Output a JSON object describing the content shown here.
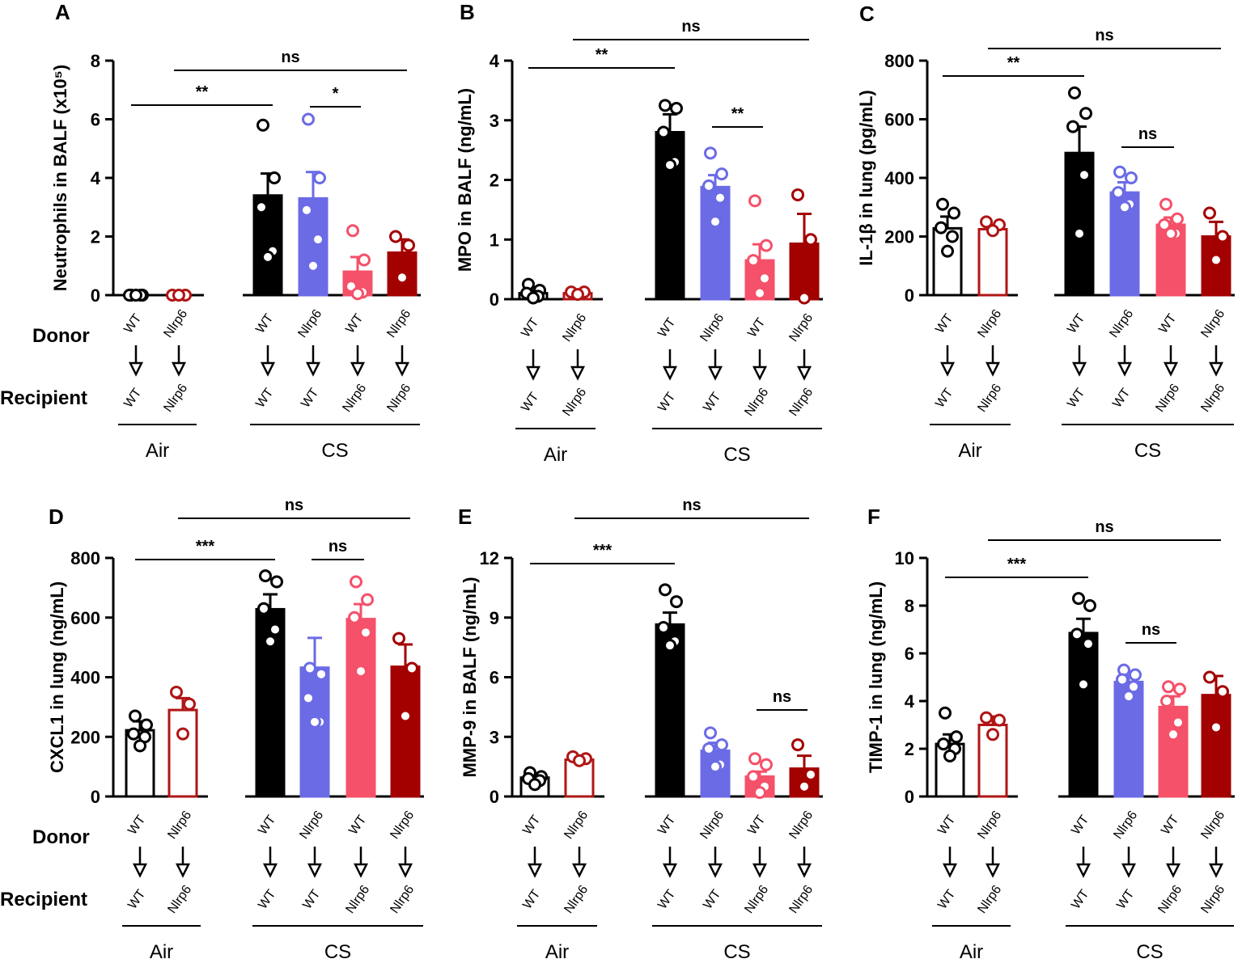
{
  "figure": {
    "row_labels": {
      "donor": "Donor",
      "recipient": "Recipient"
    },
    "exposure_labels": {
      "air": "Air",
      "cs": "CS"
    },
    "groups": [
      {
        "donor": "WT",
        "recipient": "WT",
        "exposure": "Air"
      },
      {
        "donor": "Nlrp6",
        "recipient": "Nlrp6",
        "exposure": "Air"
      },
      {
        "donor": "WT",
        "recipient": "WT",
        "exposure": "CS"
      },
      {
        "donor": "Nlrp6",
        "recipient": "WT",
        "exposure": "CS"
      },
      {
        "donor": "WT",
        "recipient": "Nlrp6",
        "exposure": "CS"
      },
      {
        "donor": "Nlrp6",
        "recipient": "Nlrp6",
        "exposure": "CS"
      }
    ],
    "colors": {
      "air_wt": "#000000",
      "air_nlrp6": "#b01515",
      "cs_wt_wt": "#000000",
      "cs_nlrp6_wt": "#6b6be6",
      "cs_wt_nlrp6": "#f5516a",
      "cs_nlrp6_nlrp6": "#a30000"
    }
  },
  "chart_data": [
    {
      "panel": "A",
      "type": "bar",
      "ylabel": "Neutrophils in BALF (x10⁵)",
      "ylim": [
        0,
        8
      ],
      "yticks": [
        0,
        2,
        4,
        6,
        8
      ],
      "categories": [
        "WT→WT Air",
        "Nlrp6→Nlrp6 Air",
        "WT→WT CS",
        "Nlrp6→WT CS",
        "WT→Nlrp6 CS",
        "Nlrp6→Nlrp6 CS"
      ],
      "values": [
        0,
        0,
        3.4,
        3.3,
        0.8,
        1.45
      ],
      "errors": [
        0,
        0,
        0.75,
        0.9,
        0.5,
        0.45
      ],
      "points": [
        [
          0,
          0,
          0,
          0,
          0
        ],
        [
          0,
          0,
          0
        ],
        [
          5.8,
          4.0,
          3.0,
          1.5,
          1.3
        ],
        [
          6.0,
          4.0,
          2.9,
          1.9,
          1.0
        ],
        [
          2.2,
          1.2,
          0.3,
          0.1,
          0.05
        ],
        [
          2.0,
          1.7,
          0.6
        ]
      ],
      "significance": [
        {
          "from": 0,
          "to": 2,
          "label": "**"
        },
        {
          "from": 3,
          "to": 4,
          "label": "*"
        },
        {
          "from": 1,
          "to": 5,
          "label": "ns"
        }
      ]
    },
    {
      "panel": "B",
      "type": "bar",
      "ylabel": "MPO in BALF (ng/mL)",
      "ylim": [
        0,
        4
      ],
      "yticks": [
        0,
        1,
        2,
        3,
        4
      ],
      "categories": [
        "WT→WT Air",
        "Nlrp6→Nlrp6 Air",
        "WT→WT CS",
        "Nlrp6→WT CS",
        "WT→Nlrp6 CS",
        "Nlrp6→Nlrp6 CS"
      ],
      "values": [
        0.1,
        0.1,
        2.8,
        1.88,
        0.65,
        0.93
      ],
      "errors": [
        0.05,
        0.02,
        0.3,
        0.2,
        0.27,
        0.5
      ],
      "points": [
        [
          0.25,
          0.15,
          0.1,
          0.05,
          0.02
        ],
        [
          0.12,
          0.12,
          0.08
        ],
        [
          3.25,
          3.2,
          2.8,
          2.3,
          2.25
        ],
        [
          2.45,
          2.1,
          1.9,
          1.7,
          1.3
        ],
        [
          1.65,
          0.9,
          0.65,
          0.35,
          0.1
        ],
        [
          1.75,
          1.0,
          0.02
        ]
      ],
      "significance": [
        {
          "from": 0,
          "to": 2,
          "label": "**"
        },
        {
          "from": 3,
          "to": 4,
          "label": "**"
        },
        {
          "from": 1,
          "to": 5,
          "label": "ns"
        }
      ]
    },
    {
      "panel": "C",
      "type": "bar",
      "ylabel": "IL-1β in lung (pg/mL)",
      "ylim": [
        0,
        800
      ],
      "yticks": [
        0,
        200,
        400,
        600,
        800
      ],
      "categories": [
        "WT→WT Air",
        "Nlrp6→Nlrp6 Air",
        "WT→WT CS",
        "Nlrp6→WT CS",
        "WT→Nlrp6 CS",
        "Nlrp6→Nlrp6 CS"
      ],
      "values": [
        228,
        225,
        485,
        350,
        240,
        200
      ],
      "errors": [
        40,
        15,
        90,
        35,
        25,
        50
      ],
      "points": [
        [
          310,
          280,
          230,
          200,
          150
        ],
        [
          250,
          240,
          220
        ],
        [
          690,
          620,
          575,
          410,
          210
        ],
        [
          420,
          400,
          350,
          310,
          300
        ],
        [
          310,
          260,
          240,
          210,
          210
        ],
        [
          280,
          200,
          120
        ]
      ],
      "significance": [
        {
          "from": 0,
          "to": 2,
          "label": "**"
        },
        {
          "from": 3,
          "to": 4,
          "label": "ns"
        },
        {
          "from": 1,
          "to": 5,
          "label": "ns"
        }
      ]
    },
    {
      "panel": "D",
      "type": "bar",
      "ylabel": "CXCL1 in lung (ng/mL)",
      "ylim": [
        0,
        800
      ],
      "yticks": [
        0,
        200,
        400,
        600,
        800
      ],
      "categories": [
        "WT→WT Air",
        "Nlrp6→Nlrp6 Air",
        "WT→WT CS",
        "Nlrp6→WT CS",
        "WT→Nlrp6 CS",
        "Nlrp6→Nlrp6 CS"
      ],
      "values": [
        222,
        290,
        628,
        432,
        595,
        435
      ],
      "errors": [
        30,
        40,
        50,
        100,
        50,
        75
      ],
      "points": [
        [
          270,
          240,
          210,
          200,
          170
        ],
        [
          350,
          310,
          210
        ],
        [
          740,
          720,
          630,
          560,
          520
        ],
        [
          430,
          410,
          330,
          250,
          250
        ],
        [
          720,
          660,
          600,
          550,
          420
        ],
        [
          530,
          430,
          270
        ]
      ],
      "significance": [
        {
          "from": 0,
          "to": 2,
          "label": "***"
        },
        {
          "from": 3,
          "to": 4,
          "label": "ns"
        },
        {
          "from": 1,
          "to": 5,
          "label": "ns"
        }
      ]
    },
    {
      "panel": "E",
      "type": "bar",
      "ylabel": "MMP-9 in BALF (ng/mL)",
      "ylim": [
        0,
        12
      ],
      "yticks": [
        0,
        3,
        6,
        9,
        12
      ],
      "categories": [
        "WT→WT Air",
        "Nlrp6→Nlrp6 Air",
        "WT→WT CS",
        "Nlrp6→WT CS",
        "WT→Nlrp6 CS",
        "Nlrp6→Nlrp6 CS"
      ],
      "values": [
        0.95,
        1.85,
        8.65,
        2.3,
        1.0,
        1.4
      ],
      "errors": [
        0.15,
        0.15,
        0.6,
        0.4,
        0.25,
        0.65
      ],
      "points": [
        [
          1.2,
          1.0,
          0.9,
          0.8,
          0.6
        ],
        [
          2.0,
          1.9,
          1.8
        ],
        [
          10.4,
          9.8,
          8.5,
          7.8,
          7.6
        ],
        [
          3.2,
          2.6,
          2.4,
          1.6,
          1.5
        ],
        [
          1.9,
          1.6,
          1.0,
          0.5,
          0.2
        ],
        [
          2.6,
          1.1,
          0.5
        ]
      ],
      "significance": [
        {
          "from": 0,
          "to": 2,
          "label": "***"
        },
        {
          "from": 4,
          "to": 5,
          "label": "ns"
        },
        {
          "from": 1,
          "to": 5,
          "label": "ns"
        }
      ]
    },
    {
      "panel": "F",
      "type": "bar",
      "ylabel": "TIMP-1 in lung (ng/mL)",
      "ylim": [
        0,
        10
      ],
      "yticks": [
        0,
        2,
        4,
        6,
        8,
        10
      ],
      "categories": [
        "WT→WT Air",
        "Nlrp6→Nlrp6 Air",
        "WT→WT CS",
        "Nlrp6→WT CS",
        "WT→Nlrp6 CS",
        "Nlrp6→Nlrp6 CS"
      ],
      "values": [
        2.2,
        3.0,
        6.85,
        4.8,
        3.75,
        4.25
      ],
      "errors": [
        0.4,
        0.35,
        0.6,
        0.25,
        0.45,
        0.8
      ],
      "points": [
        [
          3.5,
          2.5,
          2.2,
          2.0,
          1.7
        ],
        [
          3.3,
          3.2,
          2.6
        ],
        [
          8.3,
          8.0,
          6.8,
          6.4,
          4.7
        ],
        [
          5.3,
          5.1,
          4.9,
          4.6,
          4.2
        ],
        [
          4.6,
          4.5,
          4.0,
          3.1,
          2.6
        ],
        [
          5.0,
          4.4,
          2.9
        ]
      ],
      "significance": [
        {
          "from": 0,
          "to": 2,
          "label": "***"
        },
        {
          "from": 3,
          "to": 4,
          "label": "ns"
        },
        {
          "from": 1,
          "to": 5,
          "label": "ns"
        }
      ]
    }
  ]
}
